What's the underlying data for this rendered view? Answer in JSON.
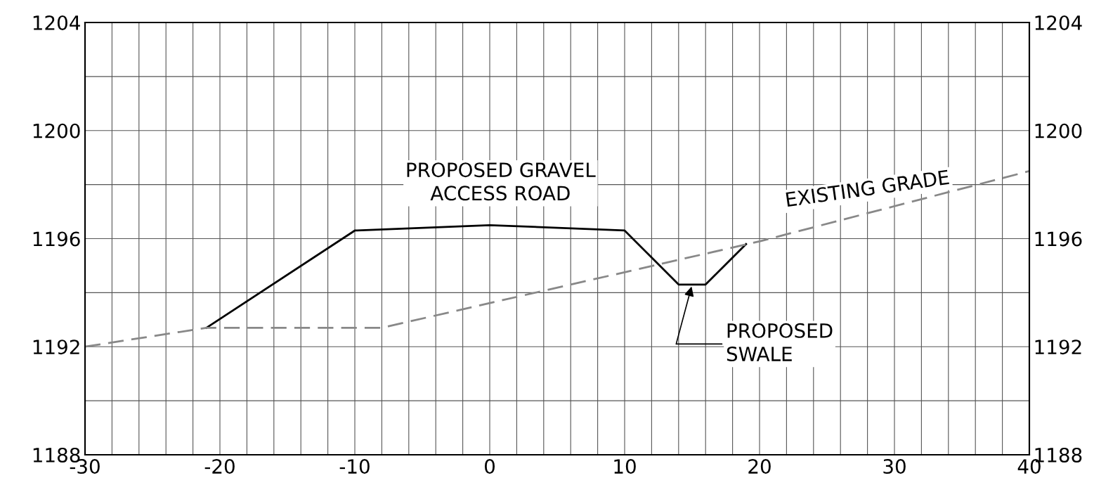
{
  "chart_data": {
    "type": "line",
    "xlim": [
      -30,
      40
    ],
    "xticks": [
      -30,
      {
        "value": -28,
        "label": null
      },
      {
        "value": -26,
        "label": null
      },
      {
        "value": -24,
        "label": null
      },
      {
        "value": -22,
        "label": null
      },
      -20,
      {
        "value": -18,
        "label": null
      },
      {
        "value": -16,
        "label": null
      },
      {
        "value": -14,
        "label": null
      },
      {
        "value": -12,
        "label": null
      },
      -10,
      {
        "value": -8,
        "label": null
      },
      {
        "value": -6,
        "label": null
      },
      {
        "value": -4,
        "label": null
      },
      {
        "value": -2,
        "label": null
      },
      0,
      {
        "value": 2,
        "label": null
      },
      {
        "value": 4,
        "label": null
      },
      {
        "value": 6,
        "label": null
      },
      {
        "value": 8,
        "label": null
      },
      10,
      {
        "value": 12,
        "label": null
      },
      {
        "value": 14,
        "label": null
      },
      {
        "value": 16,
        "label": null
      },
      {
        "value": 18,
        "label": null
      },
      20,
      {
        "value": 22,
        "label": null
      },
      {
        "value": 24,
        "label": null
      },
      {
        "value": 26,
        "label": null
      },
      {
        "value": 28,
        "label": null
      },
      30,
      {
        "value": 32,
        "label": null
      },
      {
        "value": 34,
        "label": null
      },
      {
        "value": 36,
        "label": null
      },
      {
        "value": 38,
        "label": null
      },
      40
    ],
    "ylim": [
      1188,
      1204
    ],
    "yticks": [
      1188,
      {
        "value": 1190,
        "label": null
      },
      1192,
      {
        "value": 1194,
        "label": null
      },
      1196,
      {
        "value": 1198,
        "label": null
      },
      1200,
      {
        "value": 1202,
        "label": null
      },
      1204
    ],
    "y2lim": [
      1188,
      1204
    ],
    "y2ticks": [
      1188,
      1192,
      1196,
      1200,
      1204
    ],
    "grid": true,
    "series": [
      {
        "color": "#000000",
        "line_style": "solid",
        "x": [
          -21,
          -10,
          0,
          10,
          14,
          16,
          19
        ],
        "values": [
          1192.7,
          1196.3,
          1196.5,
          1196.3,
          1194.3,
          1194.3,
          1195.8
        ]
      },
      {
        "color": "#888888",
        "line_style": "dashed",
        "x": [
          -30,
          -21,
          -8,
          20,
          40
        ],
        "values": [
          1192,
          1192.7,
          1192.7,
          1195.9,
          1198.5
        ]
      }
    ],
    "annotations": [
      {
        "text": "PROPOSED GRAVEL\nACCESS ROAD",
        "x": 0,
        "y": 1196.5
      },
      {
        "text": "EXISTING GRADE",
        "x": 28,
        "y": 1197.1
      },
      {
        "text": "PROPOSED\nSWALE",
        "x": 15,
        "y": 1194.3
      }
    ]
  }
}
